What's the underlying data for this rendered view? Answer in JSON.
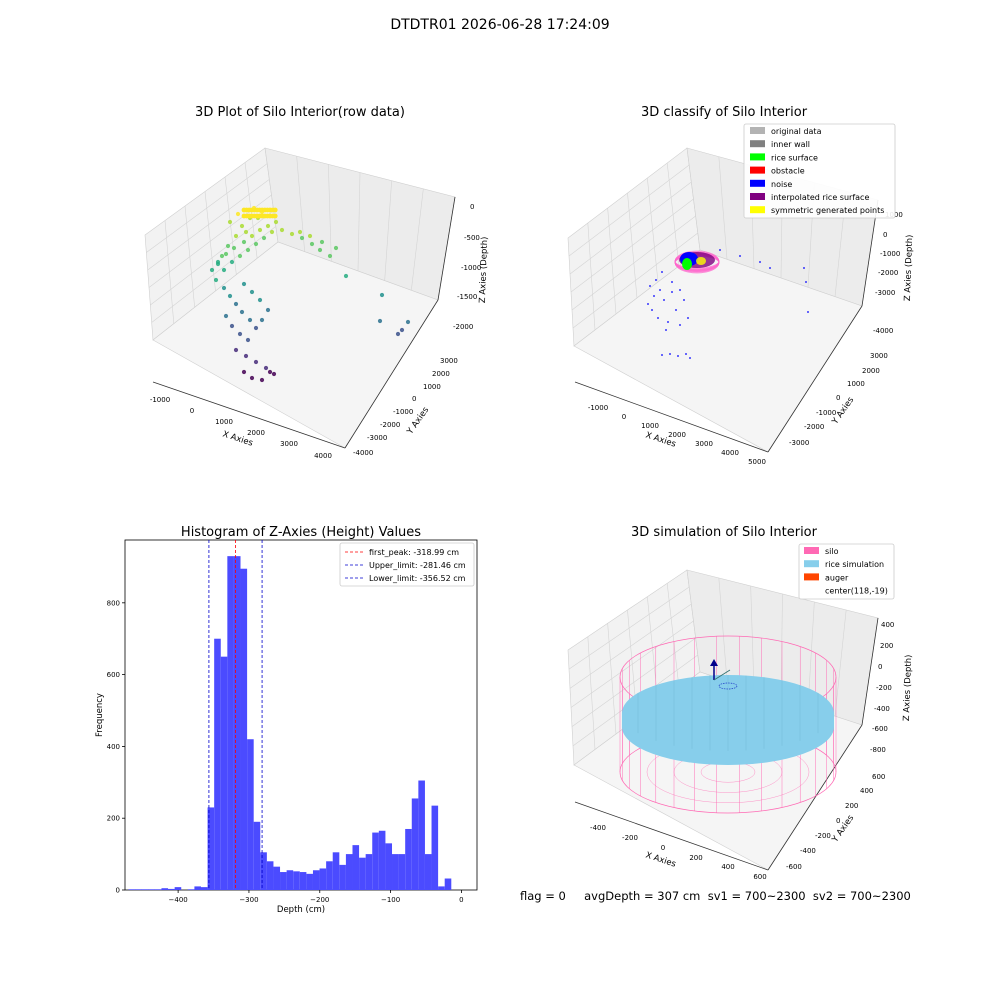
{
  "figure": {
    "suptitle": "DTDTR01 2026-06-28 17:24:09",
    "status_text": "flag = 0     avgDepth = 307 cm  sv1 = 700~2300  sv2 = 700~2300",
    "colors": {
      "histogram_bar": "#4b4bff",
      "first_peak_line": "#ff0000",
      "limit_line": "#0000cc",
      "silo": "#ff69b4",
      "rice_simulation": "#87ceeb",
      "auger": "#ff4500"
    }
  },
  "chart_data": [
    {
      "type": "scatter",
      "projection": "3d",
      "title": "3D Plot of Silo Interior(row data)",
      "xlabel": "X Axies",
      "ylabel": "Y Axies",
      "zlabel": "Z Axies (Depth)",
      "x_ticks": [
        "-1000",
        "0",
        "1000",
        "2000",
        "3000",
        "4000"
      ],
      "y_ticks": [
        "3000",
        "2000",
        "1000",
        "0",
        "-1000",
        "-2000",
        "-3000",
        "-4000"
      ],
      "z_ticks": [
        "0",
        "-500",
        "-1000",
        "-1500",
        "-2000"
      ],
      "colormap": "viridis",
      "grid": true
    },
    {
      "type": "scatter",
      "projection": "3d",
      "title": "3D classify of Silo Interior",
      "xlabel": "X Axies",
      "ylabel": "Y Axies",
      "zlabel": "Z Axies (Depth)",
      "x_ticks": [
        "-1000",
        "0",
        "1000",
        "2000",
        "3000",
        "4000",
        "5000"
      ],
      "y_ticks": [
        "3000",
        "2000",
        "1000",
        "0",
        "-1000",
        "-2000",
        "-3000"
      ],
      "z_ticks": [
        "1000",
        "0",
        "-1000",
        "-2000",
        "-3000",
        "-4000"
      ],
      "legend_position": "top-right",
      "legend": [
        {
          "label": "original data",
          "color": "#b3b3b3"
        },
        {
          "label": "inner wall",
          "color": "#808080"
        },
        {
          "label": "rice surface",
          "color": "#00ff00"
        },
        {
          "label": "obstacle",
          "color": "#ff0000"
        },
        {
          "label": "noise",
          "color": "#0000ff"
        },
        {
          "label": "interpolated rice surface",
          "color": "#800080"
        },
        {
          "label": "symmetric generated points",
          "color": "#ffff00"
        }
      ],
      "grid": true
    },
    {
      "type": "bar",
      "title": "Histogram of Z-Axies (Height) Values",
      "xlabel": "Depth (cm)",
      "ylabel": "Frequency",
      "xlim": [
        -475,
        22
      ],
      "ylim": [
        0,
        975
      ],
      "x_ticks": [
        -400,
        -300,
        -200,
        -100,
        0
      ],
      "y_ticks": [
        0,
        200,
        400,
        600,
        800
      ],
      "bin_width": 9.3,
      "bin_start": [
        -470,
        -460.7,
        -451.4,
        -442.1,
        -432.8,
        -423.5,
        -414.2,
        -404.9,
        -395.6,
        -386.3,
        -377,
        -367.7,
        -358.4,
        -349.1,
        -339.8,
        -330.5,
        -321.2,
        -311.9,
        -302.6,
        -293.3,
        -284,
        -274.7,
        -265.4,
        -256.1,
        -246.8,
        -237.5,
        -228.2,
        -218.9,
        -209.6,
        -200.3,
        -191,
        -181.7,
        -172.4,
        -163.1,
        -153.8,
        -144.5,
        -135.2,
        -125.9,
        -116.6,
        -107.3,
        -98,
        -88.7,
        -79.4,
        -70.1,
        -60.8,
        -51.5,
        -42.2,
        -32.9,
        -23.6,
        -14.3,
        -5
      ],
      "counts": [
        2,
        2,
        2,
        2,
        2,
        5,
        3,
        8,
        0,
        2,
        10,
        8,
        230,
        700,
        650,
        930,
        930,
        895,
        420,
        190,
        105,
        80,
        65,
        50,
        55,
        52,
        50,
        45,
        55,
        60,
        80,
        105,
        70,
        100,
        125,
        90,
        100,
        160,
        165,
        130,
        100,
        100,
        170,
        255,
        305,
        100,
        235,
        10,
        32,
        0,
        0
      ],
      "vlines": [
        {
          "label": "first_peak: -318.99 cm",
          "x": -318.99,
          "color": "#ff0000"
        },
        {
          "label": "Upper_limit: -281.46 cm",
          "x": -281.46,
          "color": "#0000cc"
        },
        {
          "label": "Lower_limit: -356.52 cm",
          "x": -356.52,
          "color": "#0000cc"
        }
      ],
      "legend_position": "top-right",
      "grid": false
    },
    {
      "type": "scatter",
      "projection": "3d",
      "title": "3D simulation of Silo Interior",
      "xlabel": "X Axies",
      "ylabel": "Y Axies",
      "zlabel": "Z Axies (Depth)",
      "x_ticks": [
        "-400",
        "-200",
        "0",
        "200",
        "400",
        "600"
      ],
      "y_ticks": [
        "600",
        "400",
        "200",
        "0",
        "-200",
        "-400",
        "-600"
      ],
      "z_ticks": [
        "400",
        "200",
        "0",
        "-200",
        "-400",
        "-600",
        "-800"
      ],
      "legend_position": "top-right",
      "legend": [
        {
          "label": "silo",
          "color": "#ff69b4"
        },
        {
          "label": "rice simulation",
          "color": "#87ceeb"
        },
        {
          "label": "auger",
          "color": "#ff4500"
        },
        {
          "label": "center(118,-19)",
          "color": ""
        }
      ],
      "grid": true
    }
  ]
}
